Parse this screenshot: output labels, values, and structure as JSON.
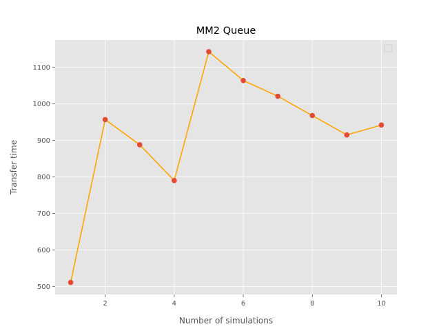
{
  "chart_data": {
    "type": "line",
    "title": "MM2 Queue",
    "xlabel": "Number of simulations",
    "ylabel": "Transfer time",
    "x": [
      1,
      2,
      3,
      4,
      5,
      6,
      7,
      8,
      9,
      10
    ],
    "series": [
      {
        "values": [
          511,
          957,
          888,
          790,
          1143,
          1064,
          1021,
          968,
          915,
          942
        ]
      }
    ],
    "xlim": [
      0.55,
      10.45
    ],
    "ylim": [
      478,
      1175
    ],
    "xticks": [
      2,
      4,
      6,
      8,
      10
    ],
    "yticks": [
      500,
      600,
      700,
      800,
      900,
      1000,
      1100
    ],
    "grid": true,
    "legend": "top-right",
    "colors": {
      "background": "#e5e5e5",
      "grid": "#ffffff",
      "line": "#ffa500",
      "marker": "#e24a33"
    }
  }
}
